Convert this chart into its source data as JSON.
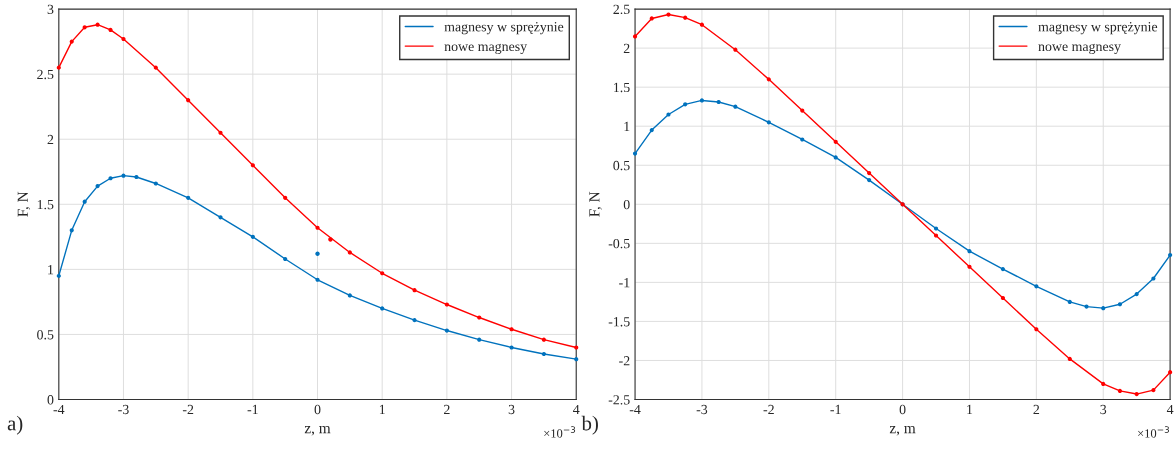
{
  "chart_data": [
    {
      "type": "line",
      "xlabel": "z, m",
      "ylabel": "F, N",
      "xlim": [
        -4,
        4
      ],
      "xticks": [
        -4,
        -3,
        -2,
        -1,
        0,
        1,
        2,
        3,
        4
      ],
      "ylim": [
        0,
        3
      ],
      "yticks": [
        0,
        0.5,
        1,
        1.5,
        2,
        2.5,
        3
      ],
      "grid": true,
      "legend": "top right",
      "marker": "circle",
      "line_style": "solid",
      "annotations": [
        "a)",
        "×10$^{−3}$"
      ],
      "series": [
        {
          "name": "magnesy w sprężynie",
          "color": "#0072bd",
          "x": [
            -4,
            -3.8,
            -3.6,
            -3.4,
            -3.2,
            -3,
            -2.8,
            -2.5,
            -2,
            -1.5,
            -1,
            -0.5,
            0,
            0.5,
            1,
            1.5,
            2,
            2.5,
            3,
            3.5,
            4
          ],
          "values": [
            0.95,
            1.3,
            1.52,
            1.64,
            1.7,
            1.72,
            1.71,
            1.66,
            1.55,
            1.4,
            1.25,
            1.08,
            0.92,
            0.8,
            0.7,
            0.61,
            0.53,
            0.46,
            0.4,
            0.35,
            0.31
          ]
        },
        {
          "name": "nowe magnesy",
          "color": "#ff0000",
          "x": [
            -4,
            -3.8,
            -3.6,
            -3.4,
            -3.2,
            -3,
            -2.5,
            -2,
            -1.5,
            -1,
            -0.5,
            0,
            0.5,
            1,
            1.5,
            2,
            2.5,
            3,
            3.5,
            4
          ],
          "values": [
            2.55,
            2.75,
            2.86,
            2.88,
            2.84,
            2.77,
            2.55,
            2.3,
            2.05,
            1.8,
            1.55,
            1.32,
            1.13,
            0.97,
            0.84,
            0.73,
            0.63,
            0.54,
            0.46,
            0.4
          ]
        },
        {
          "type": "scatter",
          "color": "#0072bd",
          "x": [
            0
          ],
          "values": [
            1.12
          ]
        },
        {
          "type": "scatter",
          "color": "#ff0000",
          "x": [
            0.2
          ],
          "values": [
            1.23
          ]
        }
      ]
    },
    {
      "type": "line",
      "xlabel": "z, m",
      "ylabel": "F, N",
      "xlim": [
        -4,
        4
      ],
      "xticks": [
        -4,
        -3,
        -2,
        -1,
        0,
        1,
        2,
        3,
        4
      ],
      "ylim": [
        -2.5,
        2.5
      ],
      "yticks": [
        -2.5,
        -2,
        -1.5,
        -1,
        -0.5,
        0,
        0.5,
        1,
        1.5,
        2,
        2.5
      ],
      "grid": true,
      "legend": "top right",
      "marker": "circle",
      "line_style": "solid",
      "annotations": [
        "b)",
        "×10$^{−3}$"
      ],
      "series": [
        {
          "name": "magnesy w sprężynie",
          "color": "#0072bd",
          "x": [
            -4,
            -3.75,
            -3.5,
            -3.25,
            -3,
            -2.75,
            -2.5,
            -2,
            -1.5,
            -1,
            -0.5,
            0,
            0.5,
            1,
            1.5,
            2,
            2.5,
            2.75,
            3,
            3.25,
            3.5,
            3.75,
            4
          ],
          "values": [
            0.65,
            0.95,
            1.15,
            1.28,
            1.33,
            1.31,
            1.25,
            1.05,
            0.83,
            0.6,
            0.31,
            0,
            -0.31,
            -0.6,
            -0.83,
            -1.05,
            -1.25,
            -1.31,
            -1.33,
            -1.28,
            -1.15,
            -0.95,
            -0.65
          ]
        },
        {
          "name": "nowe magnesy",
          "color": "#ff0000",
          "x": [
            -4,
            -3.75,
            -3.5,
            -3.25,
            -3,
            -2.5,
            -2,
            -1.5,
            -1,
            -0.5,
            0,
            0.5,
            1,
            1.5,
            2,
            2.5,
            3,
            3.25,
            3.5,
            3.75,
            4
          ],
          "values": [
            2.15,
            2.38,
            2.43,
            2.39,
            2.3,
            1.98,
            1.6,
            1.2,
            0.8,
            0.4,
            0,
            -0.4,
            -0.8,
            -1.2,
            -1.6,
            -1.98,
            -2.3,
            -2.39,
            -2.43,
            -2.38,
            -2.15
          ]
        }
      ]
    }
  ]
}
